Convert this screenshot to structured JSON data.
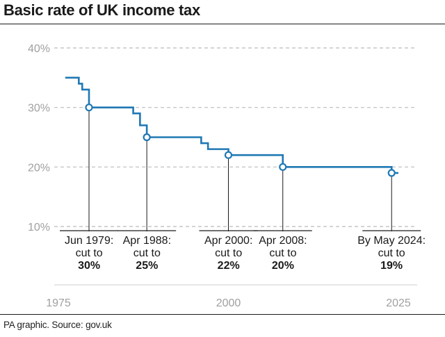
{
  "title": "Basic rate of UK income tax",
  "source": "PA graphic. Source: gov.uk",
  "colors": {
    "line": "#1f78b4",
    "grid": "#bbbbbb",
    "tick_text": "#a0a0a0",
    "rule": "#1a1a1a"
  },
  "chart_data": {
    "type": "line",
    "title": "Basic rate of UK income tax",
    "xlabel": "",
    "ylabel": "",
    "xlim": [
      1975,
      2025
    ],
    "ylim": [
      10,
      40
    ],
    "x_ticks": [
      1975,
      2000,
      2025
    ],
    "x_tick_labels": [
      "1975",
      "2000",
      "2025"
    ],
    "y_ticks": [
      10,
      20,
      30,
      40
    ],
    "y_tick_labels": [
      "10%",
      "20%",
      "30%",
      "40%"
    ],
    "grid": "horizontal dashed",
    "step_series": {
      "x": [
        1976,
        1978,
        1978.5,
        1979.5,
        1986,
        1987,
        1988,
        1996,
        1997,
        2000,
        2008,
        2024,
        2025
      ],
      "y": [
        35,
        34,
        33,
        30,
        29,
        27,
        25,
        24,
        23,
        22,
        20,
        19,
        19
      ]
    },
    "annotations": [
      {
        "x": 1979.5,
        "y": 30,
        "text": "Jun 1979:\ncut to",
        "value": "30%"
      },
      {
        "x": 1988,
        "y": 25,
        "text": "Apr 1988:\ncut to",
        "value": "25%"
      },
      {
        "x": 2000,
        "y": 22,
        "text": "Apr 2000:\ncut to",
        "value": "22%"
      },
      {
        "x": 2008,
        "y": 20,
        "text": "Apr 2008:\ncut to",
        "value": "20%"
      },
      {
        "x": 2024,
        "y": 19,
        "text": "By May 2024:\ncut to",
        "value": "19%"
      }
    ]
  }
}
